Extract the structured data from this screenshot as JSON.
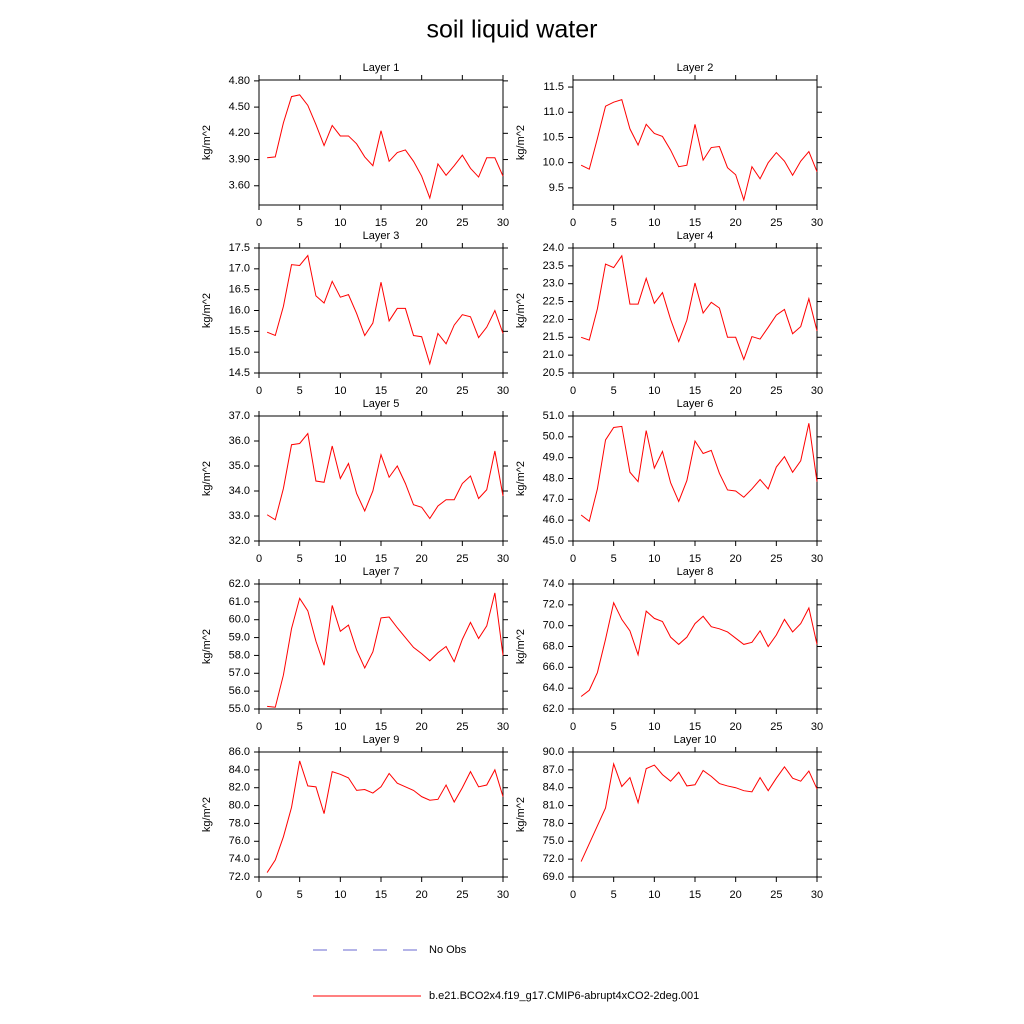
{
  "title": "soil liquid water",
  "legend": [
    {
      "name": "No Obs",
      "color": "#6a6ad0",
      "style": "dashed"
    },
    {
      "name": "b.e21.BCO2x4.f19_g17.CMIP6-abrupt4xCO2-2deg.001",
      "color": "#ff0000",
      "style": "solid"
    }
  ],
  "chart_data": [
    {
      "type": "line",
      "title": "Layer 1",
      "ylabel": "kg/m^2",
      "x": [
        1,
        2,
        3,
        4,
        5,
        6,
        7,
        8,
        9,
        10,
        11,
        12,
        13,
        14,
        15,
        16,
        17,
        18,
        19,
        20,
        21,
        22,
        23,
        24,
        25,
        26,
        27,
        28,
        29,
        30
      ],
      "xlim": [
        0,
        30
      ],
      "xticks": [
        0,
        5,
        10,
        15,
        20,
        25,
        30
      ],
      "ylim": [
        3.38,
        4.81
      ],
      "yticks": [
        {
          "value": 3.6,
          "label": "3.60"
        },
        {
          "value": 3.9,
          "label": "3.90"
        },
        {
          "value": 4.2,
          "label": "4.20"
        },
        {
          "value": 4.5,
          "label": "4.50"
        },
        {
          "value": 4.8,
          "label": "4.80"
        }
      ],
      "series": [
        {
          "color": "#ff0000",
          "values": [
            3.92,
            3.93,
            4.32,
            4.62,
            4.64,
            4.52,
            4.3,
            4.06,
            4.29,
            4.17,
            4.17,
            4.08,
            3.93,
            3.83,
            4.23,
            3.88,
            3.98,
            4.01,
            3.88,
            3.71,
            3.46,
            3.85,
            3.72,
            3.83,
            3.95,
            3.8,
            3.7,
            3.92,
            3.92,
            3.71
          ]
        }
      ]
    },
    {
      "type": "line",
      "title": "Layer 2",
      "ylabel": "kg/m^2",
      "x": [
        1,
        2,
        3,
        4,
        5,
        6,
        7,
        8,
        9,
        10,
        11,
        12,
        13,
        14,
        15,
        16,
        17,
        18,
        19,
        20,
        21,
        22,
        23,
        24,
        25,
        26,
        27,
        28,
        29,
        30
      ],
      "xlim": [
        0,
        30
      ],
      "xticks": [
        0,
        5,
        10,
        15,
        20,
        25,
        30
      ],
      "ylim": [
        9.16,
        11.64
      ],
      "yticks": [
        9.5,
        {
          "value": 10,
          "label": "10.0"
        },
        10.5,
        {
          "value": 11,
          "label": "11.0"
        },
        11.5
      ],
      "series": [
        {
          "color": "#ff0000",
          "values": [
            9.95,
            9.87,
            10.48,
            11.12,
            11.2,
            11.25,
            10.67,
            10.35,
            10.76,
            10.58,
            10.52,
            10.25,
            9.92,
            9.95,
            10.76,
            10.05,
            10.3,
            10.32,
            9.9,
            9.76,
            9.26,
            9.92,
            9.68,
            10.0,
            10.2,
            10.03,
            9.75,
            10.03,
            10.22,
            9.82
          ]
        }
      ]
    },
    {
      "type": "line",
      "title": "Layer 3",
      "ylabel": "kg/m^2",
      "x": [
        1,
        2,
        3,
        4,
        5,
        6,
        7,
        8,
        9,
        10,
        11,
        12,
        13,
        14,
        15,
        16,
        17,
        18,
        19,
        20,
        21,
        22,
        23,
        24,
        25,
        26,
        27,
        28,
        29,
        30
      ],
      "xlim": [
        0,
        30
      ],
      "xticks": [
        0,
        5,
        10,
        15,
        20,
        25,
        30
      ],
      "ylim": [
        14.5,
        17.5
      ],
      "yticks": [
        14.5,
        {
          "value": 15,
          "label": "15.0"
        },
        15.5,
        {
          "value": 16,
          "label": "16.0"
        },
        16.5,
        {
          "value": 17,
          "label": "17.0"
        },
        17.5
      ],
      "series": [
        {
          "color": "#ff0000",
          "values": [
            15.48,
            15.4,
            16.1,
            17.1,
            17.08,
            17.32,
            16.35,
            16.18,
            16.7,
            16.32,
            16.38,
            15.93,
            15.4,
            15.7,
            16.68,
            15.75,
            16.05,
            16.05,
            15.4,
            15.37,
            14.72,
            15.45,
            15.2,
            15.65,
            15.9,
            15.85,
            15.35,
            15.6,
            16.0,
            15.45
          ]
        }
      ]
    },
    {
      "type": "line",
      "title": "Layer 4",
      "ylabel": "kg/m^2",
      "x": [
        1,
        2,
        3,
        4,
        5,
        6,
        7,
        8,
        9,
        10,
        11,
        12,
        13,
        14,
        15,
        16,
        17,
        18,
        19,
        20,
        21,
        22,
        23,
        24,
        25,
        26,
        27,
        28,
        29,
        30
      ],
      "xlim": [
        0,
        30
      ],
      "xticks": [
        0,
        5,
        10,
        15,
        20,
        25,
        30
      ],
      "ylim": [
        20.5,
        24
      ],
      "yticks": [
        20.5,
        {
          "value": 21,
          "label": "21.0"
        },
        21.5,
        {
          "value": 22,
          "label": "22.0"
        },
        22.5,
        {
          "value": 23,
          "label": "23.0"
        },
        23.5,
        {
          "value": 24,
          "label": "24.0"
        }
      ],
      "series": [
        {
          "color": "#ff0000",
          "values": [
            21.5,
            21.42,
            22.3,
            23.55,
            23.45,
            23.78,
            22.43,
            22.43,
            23.15,
            22.45,
            22.75,
            22.0,
            21.38,
            21.98,
            23.02,
            22.18,
            22.48,
            22.32,
            21.5,
            21.5,
            20.88,
            21.52,
            21.45,
            21.78,
            22.12,
            22.28,
            21.6,
            21.8,
            22.58,
            21.68
          ]
        }
      ]
    },
    {
      "type": "line",
      "title": "Layer 5",
      "ylabel": "kg/m^2",
      "x": [
        1,
        2,
        3,
        4,
        5,
        6,
        7,
        8,
        9,
        10,
        11,
        12,
        13,
        14,
        15,
        16,
        17,
        18,
        19,
        20,
        21,
        22,
        23,
        24,
        25,
        26,
        27,
        28,
        29,
        30
      ],
      "xlim": [
        0,
        30
      ],
      "xticks": [
        0,
        5,
        10,
        15,
        20,
        25,
        30
      ],
      "ylim": [
        32,
        37
      ],
      "yticks": [
        {
          "value": 32,
          "label": "32.0"
        },
        {
          "value": 33,
          "label": "33.0"
        },
        {
          "value": 34,
          "label": "34.0"
        },
        {
          "value": 35,
          "label": "35.0"
        },
        {
          "value": 36,
          "label": "36.0"
        },
        {
          "value": 37,
          "label": "37.0"
        }
      ],
      "series": [
        {
          "color": "#ff0000",
          "values": [
            33.05,
            32.85,
            34.1,
            35.85,
            35.9,
            36.3,
            34.4,
            34.35,
            35.8,
            34.5,
            35.1,
            33.9,
            33.2,
            34.0,
            35.45,
            34.55,
            35.0,
            34.3,
            33.45,
            33.35,
            32.9,
            33.4,
            33.65,
            33.65,
            34.3,
            34.6,
            33.7,
            34.05,
            35.6,
            33.8
          ]
        }
      ]
    },
    {
      "type": "line",
      "title": "Layer 6",
      "ylabel": "kg/m^2",
      "x": [
        1,
        2,
        3,
        4,
        5,
        6,
        7,
        8,
        9,
        10,
        11,
        12,
        13,
        14,
        15,
        16,
        17,
        18,
        19,
        20,
        21,
        22,
        23,
        24,
        25,
        26,
        27,
        28,
        29,
        30
      ],
      "xlim": [
        0,
        30
      ],
      "xticks": [
        0,
        5,
        10,
        15,
        20,
        25,
        30
      ],
      "ylim": [
        45,
        51
      ],
      "yticks": [
        {
          "value": 45,
          "label": "45.0"
        },
        {
          "value": 46,
          "label": "46.0"
        },
        {
          "value": 47,
          "label": "47.0"
        },
        {
          "value": 48,
          "label": "48.0"
        },
        {
          "value": 49,
          "label": "49.0"
        },
        {
          "value": 50,
          "label": "50.0"
        },
        {
          "value": 51,
          "label": "51.0"
        }
      ],
      "series": [
        {
          "color": "#ff0000",
          "values": [
            46.25,
            45.95,
            47.5,
            49.85,
            50.45,
            50.5,
            48.3,
            47.85,
            50.3,
            48.5,
            49.3,
            47.8,
            46.9,
            47.9,
            49.8,
            49.2,
            49.35,
            48.25,
            47.45,
            47.4,
            47.1,
            47.5,
            47.95,
            47.5,
            48.55,
            49.05,
            48.3,
            48.85,
            50.65,
            47.85
          ]
        }
      ]
    },
    {
      "type": "line",
      "title": "Layer 7",
      "ylabel": "kg/m^2",
      "x": [
        1,
        2,
        3,
        4,
        5,
        6,
        7,
        8,
        9,
        10,
        11,
        12,
        13,
        14,
        15,
        16,
        17,
        18,
        19,
        20,
        21,
        22,
        23,
        24,
        25,
        26,
        27,
        28,
        29,
        30
      ],
      "xlim": [
        0,
        30
      ],
      "xticks": [
        0,
        5,
        10,
        15,
        20,
        25,
        30
      ],
      "ylim": [
        55,
        62
      ],
      "yticks": [
        {
          "value": 55,
          "label": "55.0"
        },
        {
          "value": 56,
          "label": "56.0"
        },
        {
          "value": 57,
          "label": "57.0"
        },
        {
          "value": 58,
          "label": "58.0"
        },
        {
          "value": 59,
          "label": "59.0"
        },
        {
          "value": 60,
          "label": "60.0"
        },
        {
          "value": 61,
          "label": "61.0"
        },
        {
          "value": 62,
          "label": "62.0"
        }
      ],
      "series": [
        {
          "color": "#ff0000",
          "values": [
            55.15,
            55.1,
            56.9,
            59.5,
            61.2,
            60.5,
            58.8,
            57.45,
            60.8,
            59.35,
            59.7,
            58.3,
            57.3,
            58.2,
            60.1,
            60.15,
            59.55,
            59.0,
            58.45,
            58.1,
            57.7,
            58.15,
            58.5,
            57.65,
            58.9,
            59.85,
            58.95,
            59.65,
            61.5,
            58.0
          ]
        }
      ]
    },
    {
      "type": "line",
      "title": "Layer 8",
      "ylabel": "kg/m^2",
      "x": [
        1,
        2,
        3,
        4,
        5,
        6,
        7,
        8,
        9,
        10,
        11,
        12,
        13,
        14,
        15,
        16,
        17,
        18,
        19,
        20,
        21,
        22,
        23,
        24,
        25,
        26,
        27,
        28,
        29,
        30
      ],
      "xlim": [
        0,
        30
      ],
      "xticks": [
        0,
        5,
        10,
        15,
        20,
        25,
        30
      ],
      "ylim": [
        62,
        74
      ],
      "yticks": [
        {
          "value": 62,
          "label": "62.0"
        },
        {
          "value": 64,
          "label": "64.0"
        },
        {
          "value": 66,
          "label": "66.0"
        },
        {
          "value": 68,
          "label": "68.0"
        },
        {
          "value": 70,
          "label": "70.0"
        },
        {
          "value": 72,
          "label": "72.0"
        },
        {
          "value": 74,
          "label": "74.0"
        }
      ],
      "series": [
        {
          "color": "#ff0000",
          "values": [
            63.2,
            63.8,
            65.5,
            68.7,
            72.2,
            70.6,
            69.5,
            67.2,
            71.4,
            70.7,
            70.4,
            68.9,
            68.2,
            68.9,
            70.2,
            70.9,
            69.9,
            69.7,
            69.4,
            68.8,
            68.2,
            68.4,
            69.5,
            68.0,
            69.1,
            70.6,
            69.4,
            70.2,
            71.7,
            68.2
          ]
        }
      ]
    },
    {
      "type": "line",
      "title": "Layer 9",
      "ylabel": "kg/m^2",
      "x": [
        1,
        2,
        3,
        4,
        5,
        6,
        7,
        8,
        9,
        10,
        11,
        12,
        13,
        14,
        15,
        16,
        17,
        18,
        19,
        20,
        21,
        22,
        23,
        24,
        25,
        26,
        27,
        28,
        29,
        30
      ],
      "xlim": [
        0,
        30
      ],
      "xticks": [
        0,
        5,
        10,
        15,
        20,
        25,
        30
      ],
      "ylim": [
        72,
        86
      ],
      "yticks": [
        {
          "value": 72,
          "label": "72.0"
        },
        {
          "value": 74,
          "label": "74.0"
        },
        {
          "value": 76,
          "label": "76.0"
        },
        {
          "value": 78,
          "label": "78.0"
        },
        {
          "value": 80,
          "label": "80.0"
        },
        {
          "value": 82,
          "label": "82.0"
        },
        {
          "value": 84,
          "label": "84.0"
        },
        {
          "value": 86,
          "label": "86.0"
        }
      ],
      "series": [
        {
          "color": "#ff0000",
          "values": [
            72.5,
            73.9,
            76.5,
            79.8,
            85.0,
            82.2,
            82.1,
            79.1,
            83.8,
            83.5,
            83.1,
            81.7,
            81.8,
            81.4,
            82.1,
            83.6,
            82.5,
            82.1,
            81.7,
            81.0,
            80.6,
            80.7,
            82.3,
            80.4,
            82.0,
            83.8,
            82.1,
            82.3,
            84.0,
            81.0
          ]
        }
      ]
    },
    {
      "type": "line",
      "title": "Layer 10",
      "ylabel": "kg/m^2",
      "x": [
        1,
        2,
        3,
        4,
        5,
        6,
        7,
        8,
        9,
        10,
        11,
        12,
        13,
        14,
        15,
        16,
        17,
        18,
        19,
        20,
        21,
        22,
        23,
        24,
        25,
        26,
        27,
        28,
        29,
        30
      ],
      "xlim": [
        0,
        30
      ],
      "xticks": [
        0,
        5,
        10,
        15,
        20,
        25,
        30
      ],
      "ylim": [
        69,
        90
      ],
      "yticks": [
        {
          "value": 69,
          "label": "69.0"
        },
        {
          "value": 72,
          "label": "72.0"
        },
        {
          "value": 75,
          "label": "75.0"
        },
        {
          "value": 78,
          "label": "78.0"
        },
        {
          "value": 81,
          "label": "81.0"
        },
        {
          "value": 84,
          "label": "84.0"
        },
        {
          "value": 87,
          "label": "87.0"
        },
        {
          "value": 90,
          "label": "90.0"
        }
      ],
      "series": [
        {
          "color": "#ff0000",
          "values": [
            71.6,
            74.6,
            77.6,
            80.6,
            88.0,
            84.2,
            85.7,
            81.5,
            87.2,
            87.8,
            86.2,
            85.1,
            86.6,
            84.3,
            84.5,
            86.9,
            85.9,
            84.7,
            84.3,
            84.0,
            83.5,
            83.3,
            85.7,
            83.5,
            85.6,
            87.5,
            85.6,
            85.1,
            86.8,
            83.8
          ]
        }
      ]
    }
  ]
}
